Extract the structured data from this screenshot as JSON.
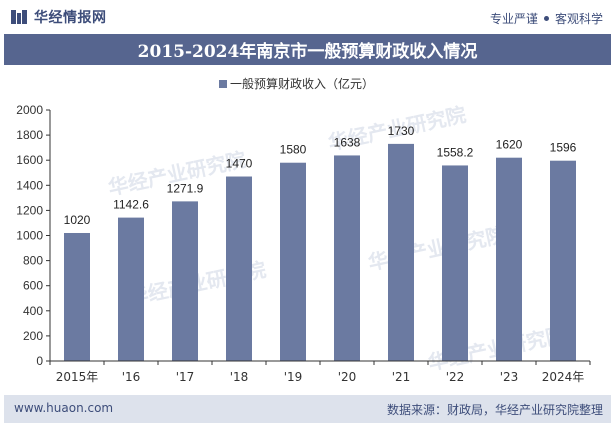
{
  "header": {
    "brand": "华经情报网",
    "tag_left": "专业严谨",
    "tag_right": "客观科学"
  },
  "title": "2015-2024年南京市一般预算财政收入情况",
  "watermark": "华经产业研究院",
  "colors": {
    "bar": "#6b7aa1",
    "title_bg": "#56658f",
    "brand": "#3d4d7a",
    "footer_bg": "#dde2ec",
    "axis": "#333333"
  },
  "chart_data": {
    "type": "bar",
    "categories": [
      "2015年",
      "'16",
      "'17",
      "'18",
      "'19",
      "'20",
      "'21",
      "'22",
      "'23",
      "2024年"
    ],
    "series": [
      {
        "name": "一般预算财政收入（亿元）",
        "values": [
          1020,
          1142.6,
          1271.9,
          1470,
          1580,
          1638,
          1730,
          1558.2,
          1620,
          1596
        ],
        "labels": [
          "1020",
          "1142.6",
          "1271.9",
          "1470",
          "1580",
          "1638",
          "1730",
          "1558.2",
          "1620",
          "1596"
        ]
      }
    ],
    "ylim": [
      0,
      2000
    ],
    "yticks": [
      0,
      200,
      400,
      600,
      800,
      1000,
      1200,
      1400,
      1600,
      1800,
      2000
    ],
    "legend": "top-center",
    "grid": false
  },
  "footer": {
    "url": "www.huaon.com",
    "source": "数据来源：财政局，华经产业研究院整理"
  }
}
